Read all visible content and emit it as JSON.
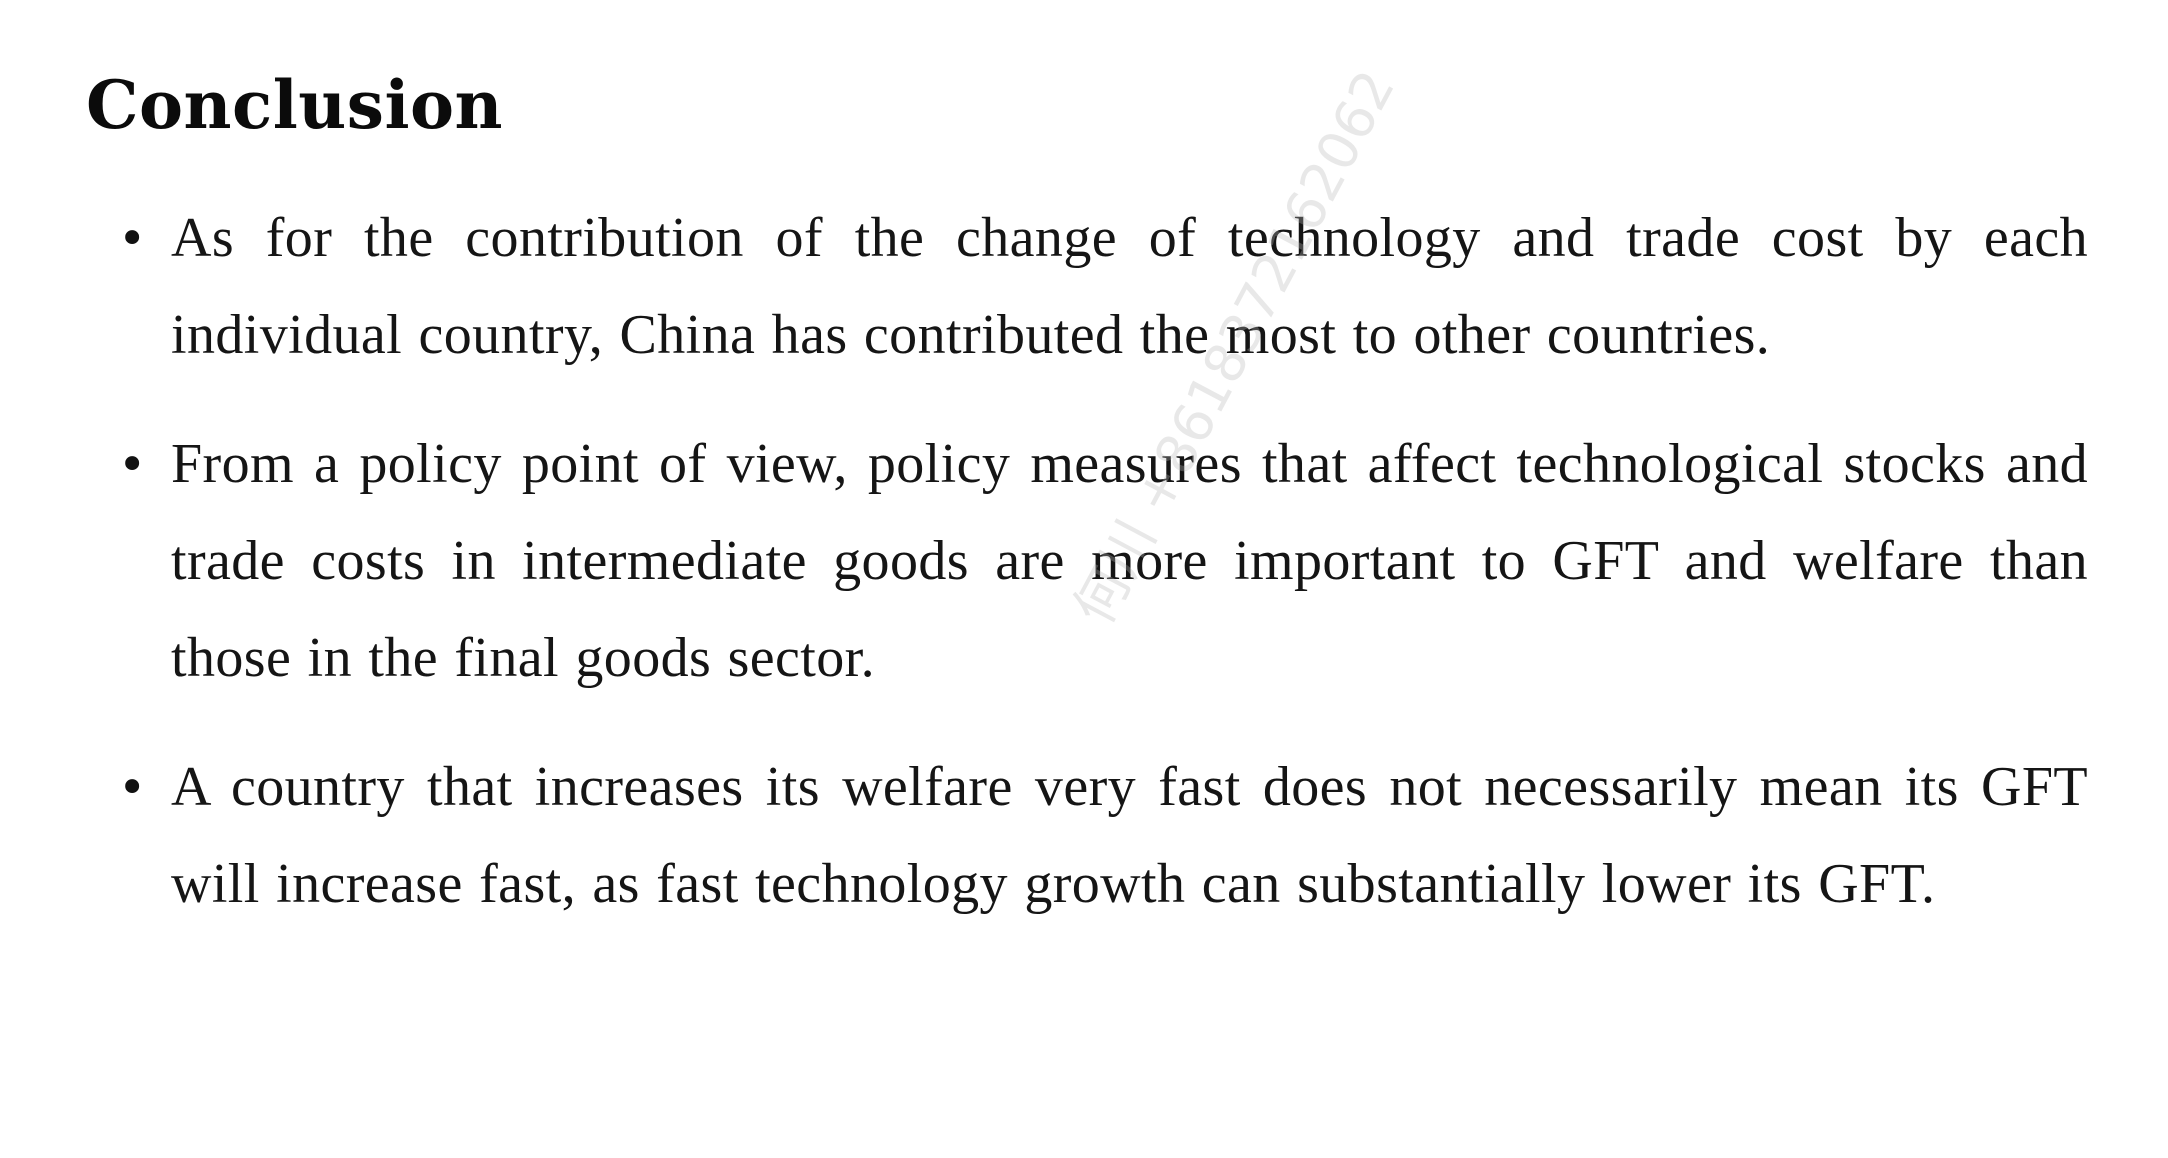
{
  "slide": {
    "title": "Conclusion",
    "bullets": [
      {
        "marker": "•",
        "text": "As for the contribution of the change of technology and trade cost by each individual country, China has contributed the most to other countries."
      },
      {
        "marker": "•",
        "text": "From a policy point of view, policy measures that affect technological stocks and trade costs in intermediate goods are more important to GFT and welfare than those in the final goods sector."
      },
      {
        "marker": "•",
        "text": "A country that increases its welfare very fast does not necessarily mean its GFT will increase fast, as fast technology growth can substantially lower its GFT."
      }
    ],
    "watermark_text": "何川 +8618372162062"
  }
}
